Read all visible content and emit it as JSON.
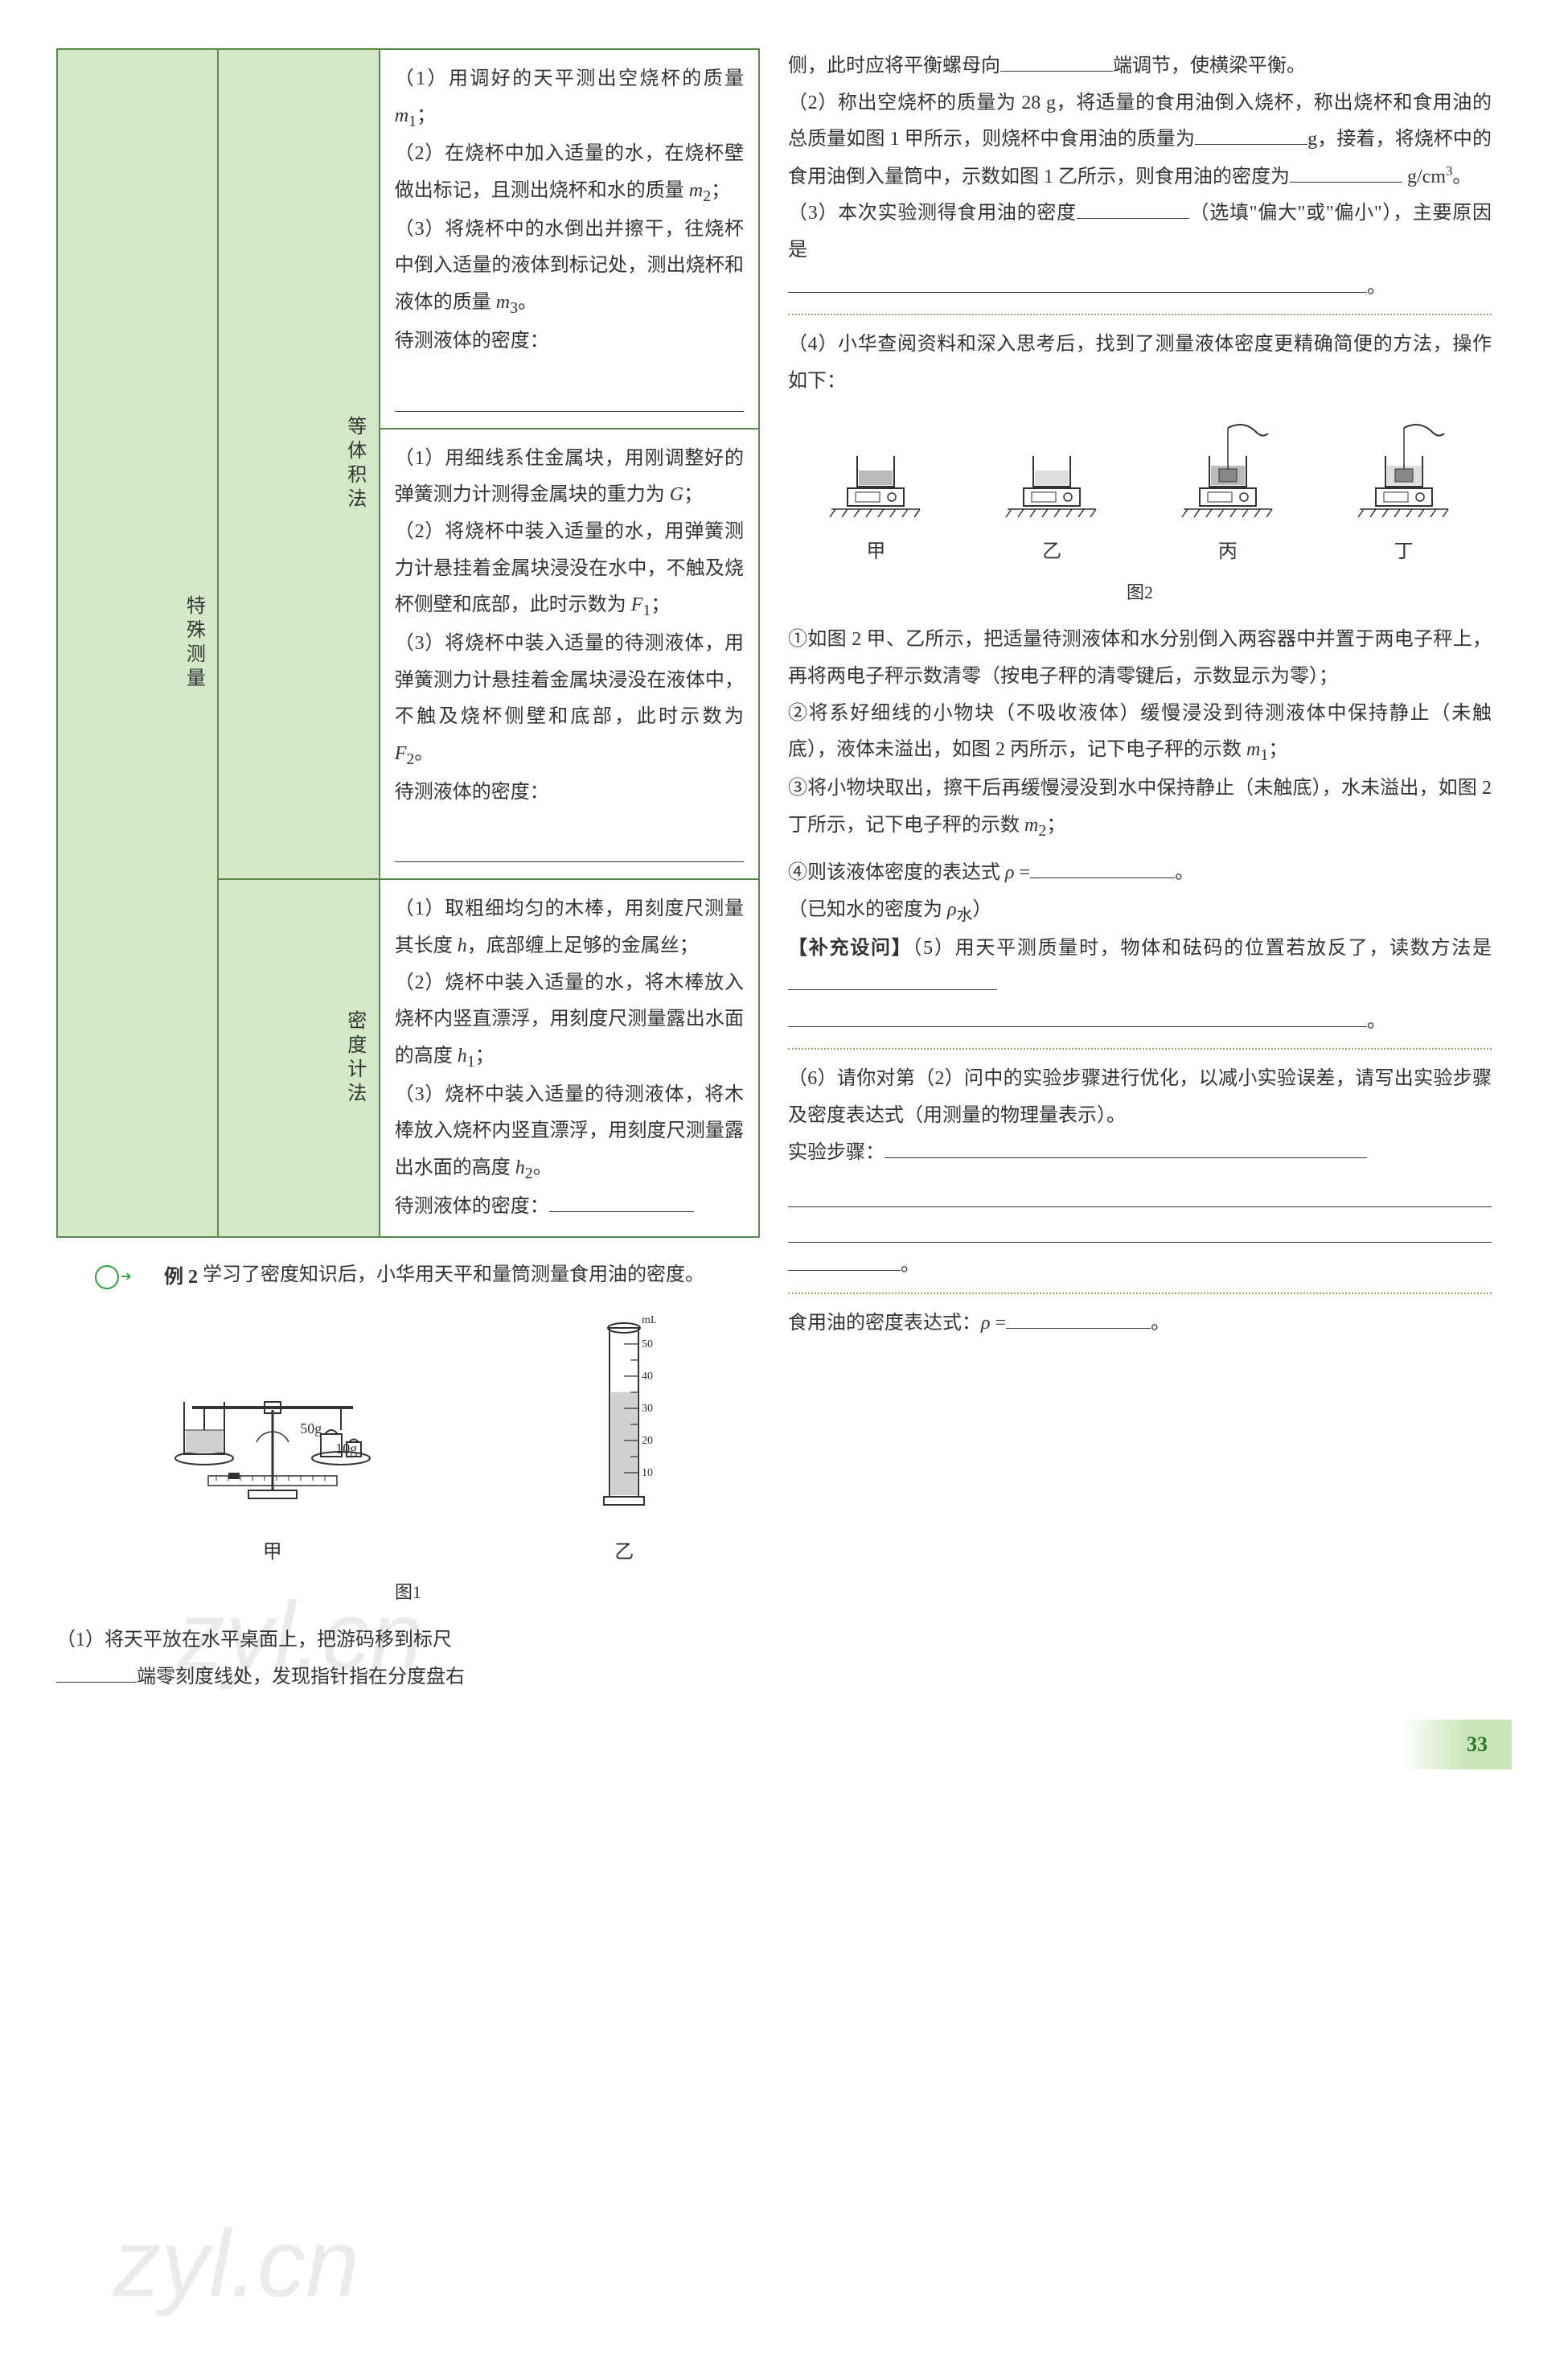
{
  "table": {
    "outer_label": "特殊测量",
    "rows": [
      {
        "sub_label": "等体积法",
        "sections": [
          {
            "lines": [
              "（1）用调好的天平测出空烧杯的质量 <span class='italic-var'>m</span><sub>1</sub>；",
              "（2）在烧杯中加入适量的水，在烧杯壁做出标记，且测出烧杯和水的质量 <span class='italic-var'>m</span><sub>2</sub>；",
              "（3）将烧杯中的水倒出并擦干，往烧杯中倒入适量的液体到标记处，测出烧杯和液体的质量 <span class='italic-var'>m</span><sub>3</sub>。",
              "待测液体的密度："
            ],
            "trailing_blanks": 1
          },
          {
            "lines": [
              "（1）用细线系住金属块，用刚调整好的弹簧测力计测得金属块的重力为 <span class='italic-var'>G</span>；",
              "（2）将烧杯中装入适量的水，用弹簧测力计悬挂着金属块浸没在水中，不触及烧杯侧壁和底部，此时示数为 <span class='italic-var'>F</span><sub>1</sub>；",
              "（3）将烧杯中装入适量的待测液体，用弹簧测力计悬挂着金属块浸没在液体中，不触及烧杯侧壁和底部，此时示数为 <span class='italic-var'>F</span><sub>2</sub>。",
              "待测液体的密度："
            ],
            "trailing_blanks": 1
          }
        ]
      },
      {
        "sub_label": "密度计法",
        "sections": [
          {
            "lines": [
              "（1）取粗细均匀的木棒，用刻度尺测量其长度 <span class='italic-var'>h</span>，底部缠上足够的金属丝；",
              "（2）烧杯中装入适量的水，将木棒放入烧杯内竖直漂浮，用刻度尺测量露出水面的高度 <span class='italic-var'>h</span><sub>1</sub>；",
              "（3）烧杯中装入适量的待测液体，将木棒放入烧杯内竖直漂浮，用刻度尺测量露出水面的高度 <span class='italic-var'>h</span><sub>2</sub>。",
              "待测液体的密度："
            ],
            "trailing_blanks": 0,
            "inline_blank": true
          }
        ]
      }
    ]
  },
  "example": {
    "label": "例 2",
    "intro": "学习了密度知识后，小华用天平和量筒测量食用油的密度。"
  },
  "fig1": {
    "left_label": "甲",
    "right_label": "乙",
    "caption": "图1",
    "weight1": "50g",
    "weight2": "10g",
    "cylinder_top": "mL",
    "cylinder_max": "50",
    "cylinder_tick": "40",
    "cylinder_tick2": "30",
    "cylinder_tick3": "20",
    "cylinder_tick4": "10"
  },
  "left_paras": {
    "q1": "（1）将天平放在水平桌面上，把游码移到标尺",
    "q1b": "端零刻度线处，发现指针指在分度盘右"
  },
  "right_paras": {
    "p1a": "侧，此时应将平衡螺母向",
    "p1b": "端调节，使横梁平衡。",
    "p2a": "（2）称出空烧杯的质量为 28 g，将适量的食用油倒入烧杯，称出烧杯和食用油的总质量如图 1 甲所示，则烧杯中食用油的质量为",
    "p2b": "g，接着，将烧杯中的食用油倒入量筒中，示数如图 1 乙所示，则食用油的密度为",
    "p2c": " g/cm",
    "p2d": "。",
    "p3a": "（3）本次实验测得食用油的密度",
    "p3b": "（选填\"偏大\"或\"偏小\"），主要原因是",
    "p3c": "。",
    "p4": "（4）小华查阅资料和深入思考后，找到了测量液体密度更精确简便的方法，操作如下：",
    "fig2": {
      "labels": [
        "甲",
        "乙",
        "丙",
        "丁"
      ],
      "caption": "图2"
    },
    "s1": "①如图 2 甲、乙所示，把适量待测液体和水分别倒入两容器中并置于两电子秤上，再将两电子秤示数清零（按电子秤的清零键后，示数显示为零）；",
    "s2": "②将系好细线的小物块（不吸收液体）缓慢浸没到待测液体中保持静止（未触底），液体未溢出，如图 2 丙所示，记下电子秤的示数 <span class='italic-var'>m</span><sub>1</sub>；",
    "s3": "③将小物块取出，擦干后再缓慢浸没到水中保持静止（未触底），水未溢出，如图 2 丁所示，记下电子秤的示数 <span class='italic-var'>m</span><sub>2</sub>；",
    "s4a": "④则该液体密度的表达式 <span class='italic-var'>ρ</span> =",
    "s4b": "。",
    "s5": "（已知水的密度为 <span class='italic-var'>ρ</span><sub>水</sub>）",
    "supp_label": "【补充设问】",
    "supp5a": "（5）用天平测质量时，物体和砝码的位置若放反了，读数方法是",
    "supp5b": "。",
    "q6": "（6）请你对第（2）问中的实验步骤进行优化，以减小实验误差，请写出实验步骤及密度表达式（用测量的物理量表示）。",
    "q6_steps": "实验步骤：",
    "q6_end": "。",
    "q6_rho_a": "食用油的密度表达式：<span class='italic-var'>ρ</span> =",
    "q6_rho_b": "。"
  },
  "page_number": "33",
  "watermarks": [
    "zyl.cn",
    "zyl.cn"
  ]
}
